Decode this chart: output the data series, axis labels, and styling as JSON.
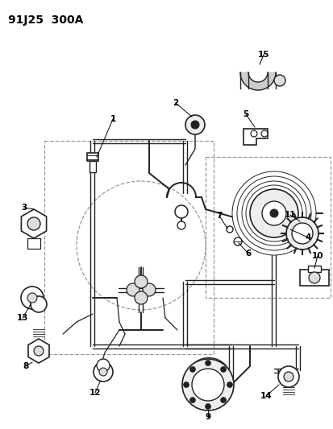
{
  "title": "91J25  300A",
  "bg_color": "#ffffff",
  "lc": "#222222",
  "dc": "#999999",
  "lw_pipe": 1.4,
  "lw_thin": 0.9,
  "label_fontsize": 7.5,
  "title_fontsize": 10
}
